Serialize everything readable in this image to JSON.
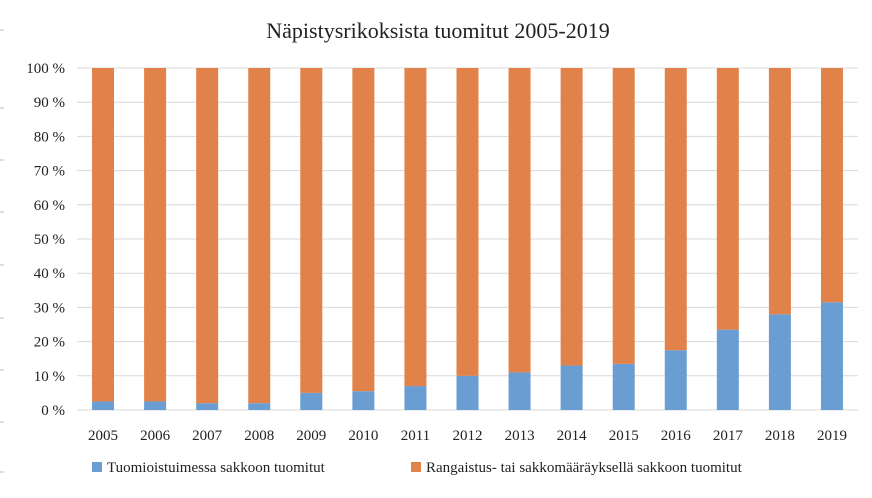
{
  "chart_data": {
    "type": "bar",
    "stacked": true,
    "title": "Näpistysrikoksista tuomitut 2005-2019",
    "xlabel": "",
    "ylabel": "",
    "ylim": [
      0,
      100
    ],
    "yticks": [
      "0 %",
      "10 %",
      "20 %",
      "30 %",
      "40 %",
      "50 %",
      "60 %",
      "70 %",
      "80 %",
      "90 %",
      "100 %"
    ],
    "grid": true,
    "legend_position": "bottom",
    "categories": [
      "2005",
      "2006",
      "2007",
      "2008",
      "2009",
      "2010",
      "2011",
      "2012",
      "2013",
      "2014",
      "2015",
      "2016",
      "2017",
      "2018",
      "2019"
    ],
    "series": [
      {
        "name": "Tuomioistuimessa sakkoon tuomitut",
        "color": "#6a9ed3",
        "values": [
          2.5,
          2.5,
          2,
          2,
          5,
          5.5,
          7,
          10,
          11,
          13,
          13.5,
          17.5,
          23.5,
          28,
          31.5
        ]
      },
      {
        "name": "Rangaistus- tai sakkomääräyksellä sakkoon tuomitut",
        "color": "#e1824a",
        "values": [
          97.5,
          97.5,
          98,
          98,
          95,
          94.5,
          93,
          90,
          89,
          87,
          86.5,
          82.5,
          76.5,
          72,
          68.5
        ]
      }
    ]
  }
}
